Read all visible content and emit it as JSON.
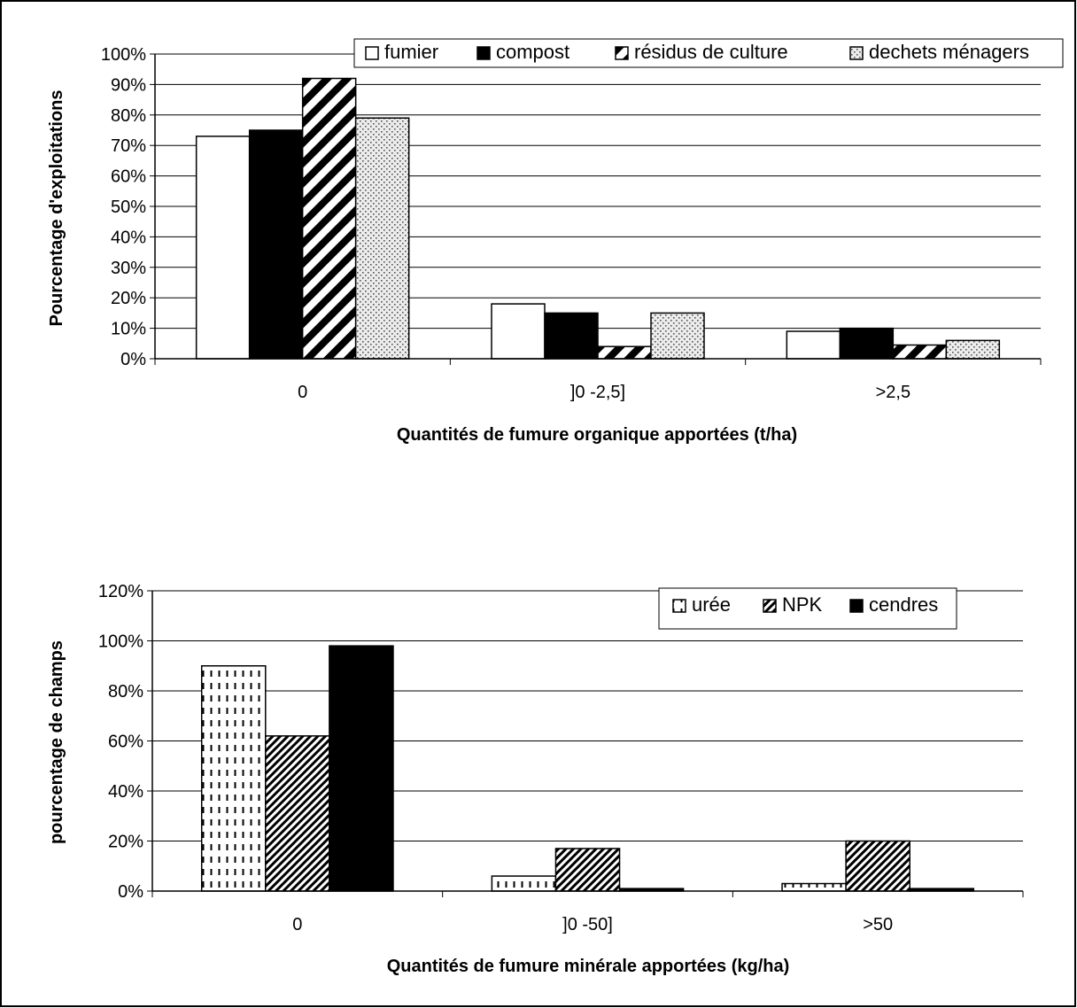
{
  "chart_data": [
    {
      "type": "bar",
      "xlabel": "Quantités de fumure organique apportées (t/ha)",
      "ylabel": "Pourcentage d'exploitations",
      "categories": [
        "0",
        "]0 -2,5]",
        ">2,5"
      ],
      "ylim": [
        0,
        100
      ],
      "yticks": [
        "0%",
        "10%",
        "20%",
        "30%",
        "40%",
        "50%",
        "60%",
        "70%",
        "80%",
        "90%",
        "100%"
      ],
      "grid": true,
      "legend_position": "top",
      "series": [
        {
          "name": "fumier",
          "values": [
            73,
            18,
            9
          ],
          "pattern": "white"
        },
        {
          "name": "compost",
          "values": [
            75,
            15,
            10
          ],
          "pattern": "black"
        },
        {
          "name": "résidus de culture",
          "values": [
            92,
            4,
            4.5
          ],
          "pattern": "diagonal"
        },
        {
          "name": "dechets ménagers",
          "values": [
            79,
            15,
            6
          ],
          "pattern": "dots"
        }
      ]
    },
    {
      "type": "bar",
      "xlabel": "Quantités de fumure minérale apportées (kg/ha)",
      "ylabel": "pourcentage de champs",
      "categories": [
        "0",
        "]0 -50]",
        ">50"
      ],
      "ylim": [
        0,
        120
      ],
      "yticks": [
        "0%",
        "20%",
        "40%",
        "60%",
        "80%",
        "100%",
        "120%"
      ],
      "grid": true,
      "legend_position": "top-right",
      "series": [
        {
          "name": "urée",
          "values": [
            90,
            6,
            3
          ],
          "pattern": "dashes"
        },
        {
          "name": "NPK",
          "values": [
            62,
            17,
            20
          ],
          "pattern": "diagonal-fine"
        },
        {
          "name": "cendres",
          "values": [
            98,
            1,
            1
          ],
          "pattern": "black"
        }
      ]
    }
  ]
}
